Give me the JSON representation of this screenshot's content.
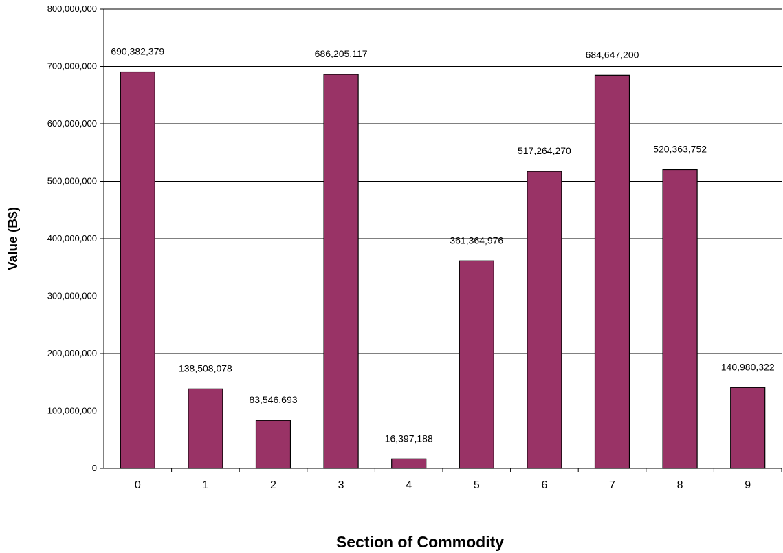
{
  "chart_data": {
    "type": "bar",
    "categories": [
      "0",
      "1",
      "2",
      "3",
      "4",
      "5",
      "6",
      "7",
      "8",
      "9"
    ],
    "values": [
      690382379,
      138508078,
      83546693,
      686205117,
      16397188,
      361364976,
      517264270,
      684647200,
      520363752,
      140980322
    ],
    "data_labels": [
      "690,382,379",
      "138,508,078",
      "83,546,693",
      "686,205,117",
      "16,397,188",
      "361,364,976",
      "517,264,270",
      "684,647,200",
      "520,363,752",
      "140,980,322"
    ],
    "xlabel": "Section of Commodity",
    "ylabel": "Value (B$)",
    "ylim": [
      0,
      800000000
    ],
    "yticks": [
      0,
      100000000,
      200000000,
      300000000,
      400000000,
      500000000,
      600000000,
      700000000,
      800000000
    ],
    "ytick_labels": [
      "0",
      "100,000,000",
      "200,000,000",
      "300,000,000",
      "400,000,000",
      "500,000,000",
      "600,000,000",
      "700,000,000",
      "800,000,000"
    ],
    "grid": true,
    "legend": "none",
    "bar_color": "#993366"
  }
}
